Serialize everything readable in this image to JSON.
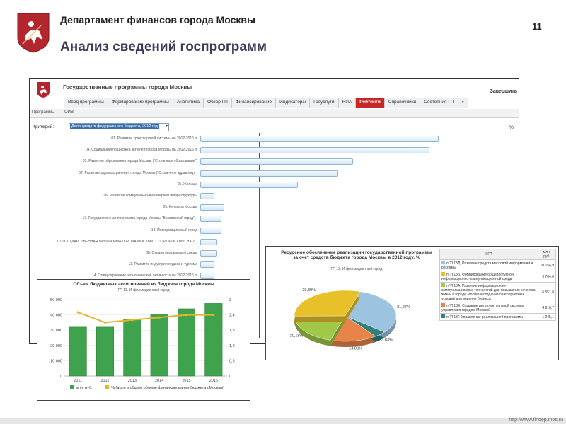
{
  "slide": {
    "department": "Департамент финансов города Москвы",
    "page_number": "11",
    "title": "Анализ сведений госпрограмм",
    "footer_url": "http://www.findep.mos.ru"
  },
  "app": {
    "title": "Государственные программы города Москвы",
    "right_link": "Завершить",
    "nav": [
      "Ввод программы",
      "Формирование программы",
      "Аналитика",
      "Обзор ГП",
      "Финансирование",
      "Индикаторы",
      "Госуслуги",
      "НПА",
      "Рейтинги",
      "Справочники",
      "Состояния ГП",
      "»"
    ],
    "active_nav": "Рейтинги",
    "subtabs": [
      "Программы",
      "ОИВ"
    ],
    "criterion_label": "Критерий:",
    "criterion_value": "Доля средств федерального бюджета, 2012 год",
    "unit": "%",
    "colors": {
      "accent": "#c62828",
      "bar_border": "#8fb6d8",
      "marker": "#b3262e"
    }
  },
  "chart_data": [
    {
      "type": "bar",
      "orientation": "horizontal",
      "categories": [
        "01. Развитие транспортной системы на 2012-2016 гг",
        "04. Социальная поддержка жителей города Москвы на 2012-2016 гг",
        "03. Развитие образования города Москвы (\"Столичное образование\")",
        "02. Развитие здравоохранения города Москвы (\"Столичное здравоохр...",
        "05. Жилище",
        "06. Развитие коммунально-инженерной инфраструктуры",
        "09. Культура Москвы",
        "17. Государственная программа города Москвы \"Безопасный город\"...",
        "13. Информационный город",
        "10. ГОСУДАРСТВЕННАЯ ПРОГРАММА ГОРОДА МОСКВЫ \"СПОРТ МОСКВЫ\" НА 2...",
        "08. Охрана окружающей среды",
        "13. Развитие индустрии отдыха и туризма",
        "14. Стимулирование экономической активности на 2012-2016 гг"
      ],
      "values": [
        100,
        96,
        64,
        58,
        41,
        6,
        10,
        9,
        9,
        7,
        7,
        6,
        6
      ]
    },
    {
      "type": "bar",
      "title": "Объем бюджетных ассигнований из бюджета города Москвы",
      "subtitle": "ГП 13. Информационный город",
      "categories": [
        "2011",
        "2012",
        "2013",
        "2014",
        "2015",
        "2016"
      ],
      "series": [
        {
          "name": "млн. руб.",
          "values": [
            32000,
            32000,
            37000,
            40500,
            44000,
            47500
          ],
          "color": "#3fa34d"
        },
        {
          "name": "% (доля в общем объеме финансирования бюджета г.Москвы)",
          "values": [
            2.5,
            2.1,
            2.2,
            2.3,
            2.4,
            2.4
          ],
          "color": "#e6b52a",
          "type": "line"
        }
      ],
      "ylim": [
        0,
        50000
      ],
      "y2lim": [
        0,
        3
      ],
      "yticks": [
        "0",
        "10 000",
        "20 000",
        "30 000",
        "40 000",
        "50 000"
      ],
      "y2ticks": [
        "0",
        "0,6",
        "1,2",
        "1,8",
        "2,4",
        "3"
      ],
      "grid": true,
      "legend": "bottom"
    },
    {
      "type": "pie",
      "title": "Ресурсное обеспечение реализации государственной программы за счет средств бюджета города Москвы в 2012 году, %",
      "subtitle": "ГП 13. Информационный город",
      "slices": [
        {
          "label": "31,27%",
          "value": 31.27,
          "color": "#9cc3e0"
        },
        {
          "label": "3,83%",
          "value": 3.83,
          "color": "#2f7f7a"
        },
        {
          "label": "14,83%",
          "value": 14.83,
          "color": "#e8834a"
        },
        {
          "label": "20,18%",
          "value": 20.18,
          "color": "#a2c84a"
        },
        {
          "label": "29,89%",
          "value": 29.89,
          "color": "#e8c02a"
        }
      ]
    }
  ],
  "pie_table": {
    "headers": [
      "КГП",
      "млн. руб."
    ],
    "rows": [
      {
        "name": "пГП 13Д. Развитие средств массовой информации и рекламы",
        "value": "10 154,9",
        "color": "#9cc3e0"
      },
      {
        "name": "пГП 13Б. Формирование общедоступной информационно-коммуникационной среды",
        "value": "9 704,0",
        "color": "#e8c02a"
      },
      {
        "name": "пГП 13А. Развитие информационно-коммуникационных технологий для повышения качества жизни в городе Москве и создания благоприятных условий для ведения бизнеса",
        "value": "6 551,8",
        "color": "#a2c84a"
      },
      {
        "name": "пГП 13Е. Создание интеллектуальной системы управления городом Москвой",
        "value": "4 816,7",
        "color": "#e8834a"
      },
      {
        "name": "пГП 13Г. Управление реализацией программы",
        "value": "1 245,1",
        "color": "#2f7f7a"
      }
    ]
  }
}
